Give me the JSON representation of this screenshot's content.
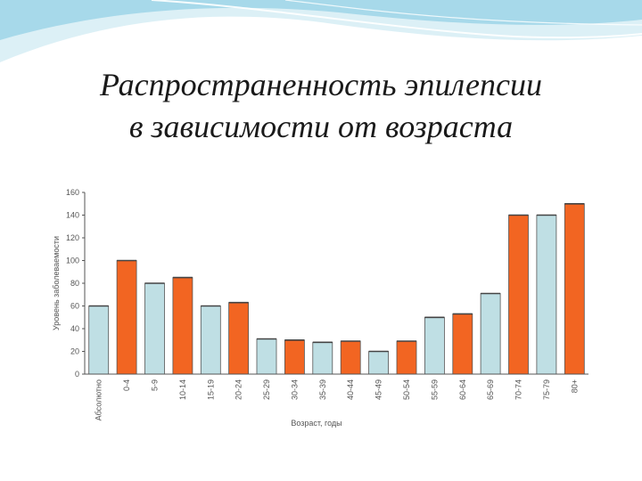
{
  "slide": {
    "title_line1": "Распространенность эпилепсии",
    "title_line2": "в зависимости от возраста"
  },
  "colors": {
    "orange": "#f26522",
    "light_blue": "#bfdfe4",
    "bar_outline": "#555555",
    "banner_blue": "#bfe3ef"
  },
  "chart_data": {
    "type": "bar",
    "xlabel": "Возраст, годы",
    "ylabel": "Уровень заболеваемости",
    "ylim": [
      0,
      160
    ],
    "yticks": [
      0,
      20,
      40,
      60,
      80,
      100,
      120,
      140,
      160
    ],
    "grid": false,
    "categories": [
      "Абсолютно",
      "0-4",
      "5-9",
      "10-14",
      "15-19",
      "20-24",
      "25-29",
      "30-34",
      "35-39",
      "40-44",
      "45-49",
      "50-54",
      "55-59",
      "60-64",
      "65-69",
      "70-74",
      "75-79",
      "80+"
    ],
    "values": [
      60,
      100,
      80,
      85,
      60,
      63,
      31,
      30,
      28,
      29,
      20,
      29,
      50,
      53,
      71,
      140,
      140,
      150
    ],
    "bar_colors": [
      "light_blue",
      "orange",
      "light_blue",
      "orange",
      "light_blue",
      "orange",
      "light_blue",
      "orange",
      "light_blue",
      "orange",
      "light_blue",
      "orange",
      "light_blue",
      "orange",
      "light_blue",
      "orange",
      "light_blue",
      "orange"
    ]
  }
}
